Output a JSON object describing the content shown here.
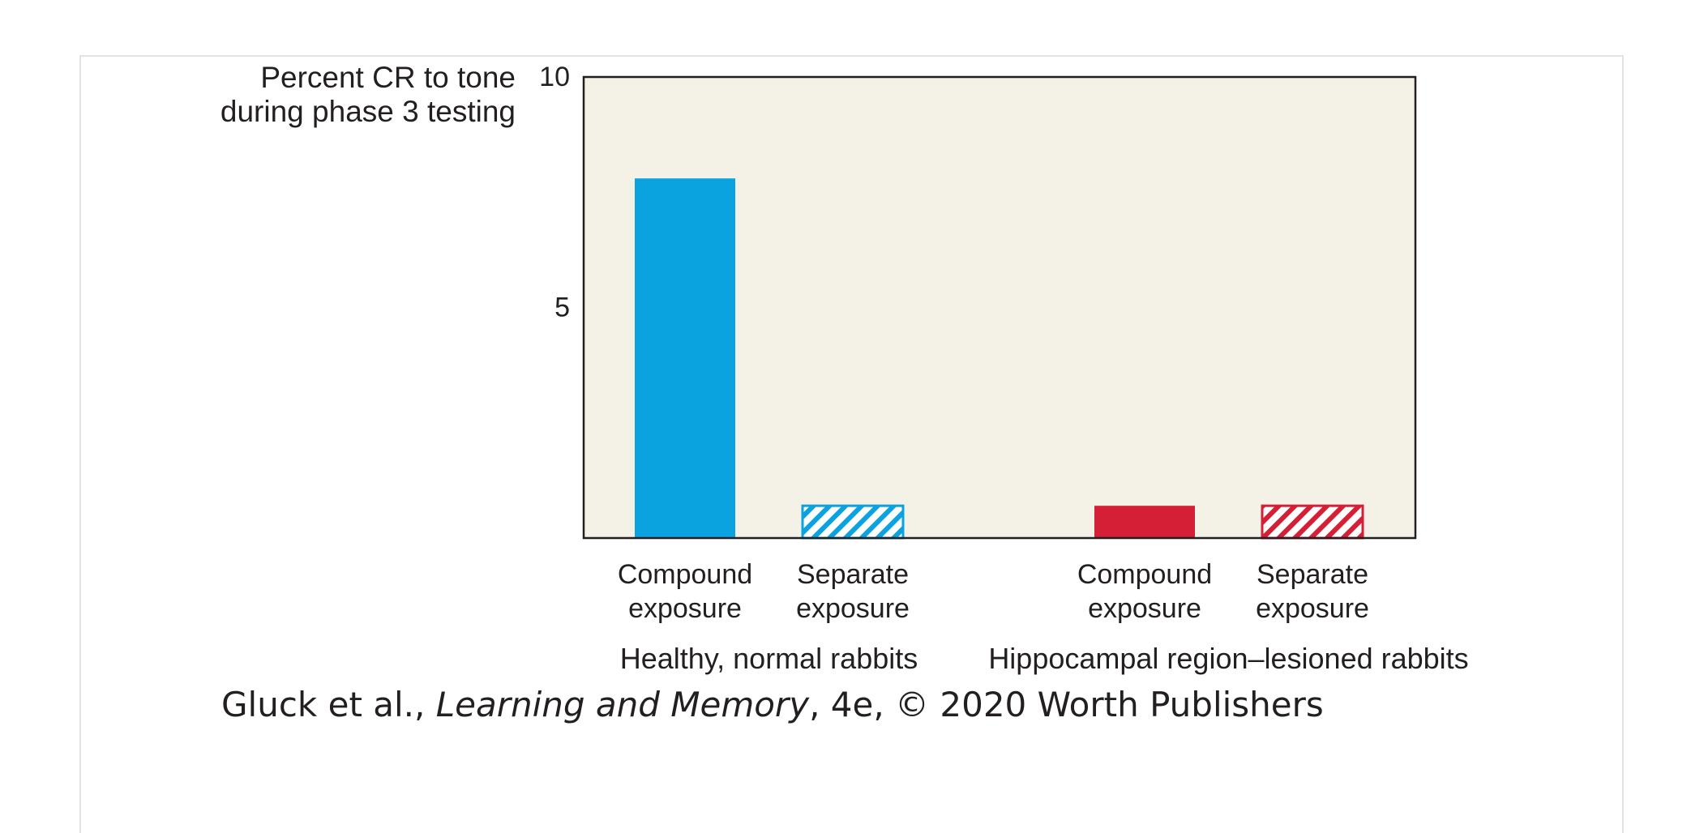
{
  "chart_data": {
    "type": "bar",
    "ylabel_lines": [
      "Percent CR to tone",
      "during phase 3 testing"
    ],
    "ylim": [
      0,
      10
    ],
    "yticks": [
      {
        "value": 10,
        "label": "10"
      },
      {
        "value": 5,
        "label": "5"
      }
    ],
    "grid": false,
    "plot_background": "#f4f1e6",
    "groups": [
      {
        "label": "Healthy, normal rabbits",
        "color": "#0ba2e0",
        "bars": [
          {
            "label_lines": [
              "Compound",
              "exposure"
            ],
            "value": 7.8,
            "fill": "solid"
          },
          {
            "label_lines": [
              "Separate",
              "exposure"
            ],
            "value": 0.7,
            "fill": "hatched"
          }
        ]
      },
      {
        "label": "Hippocampal region–lesioned rabbits",
        "color": "#d41f36",
        "bars": [
          {
            "label_lines": [
              "Compound",
              "exposure"
            ],
            "value": 0.7,
            "fill": "solid"
          },
          {
            "label_lines": [
              "Separate",
              "exposure"
            ],
            "value": 0.7,
            "fill": "hatched"
          }
        ]
      }
    ]
  },
  "credit": {
    "prefix": "Gluck et al., ",
    "title": "Learning and Memory",
    "suffix": ", 4e, © 2020 Worth Publishers"
  }
}
